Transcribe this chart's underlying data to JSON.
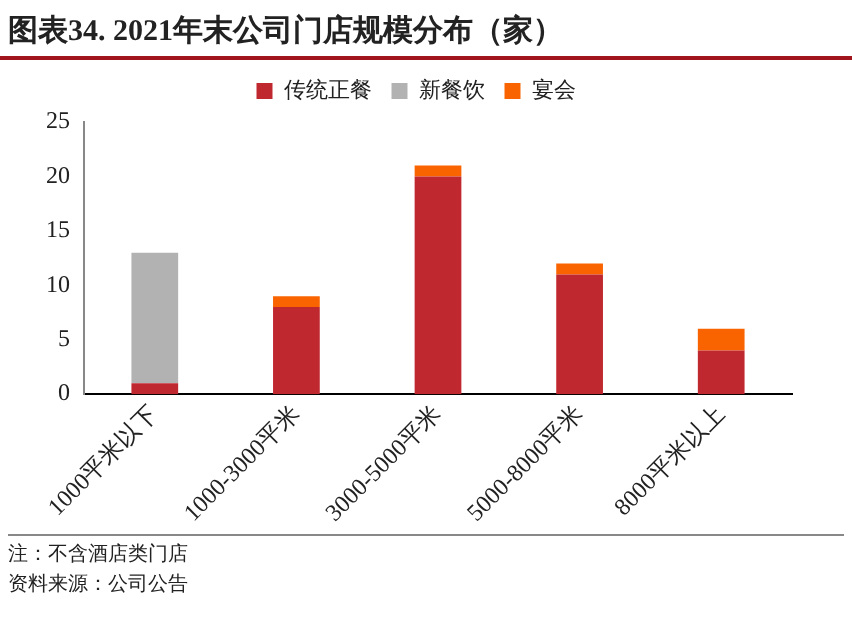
{
  "chart_data": {
    "type": "bar",
    "title": "图表34. 2021年末公司门店规模分布（家）",
    "categories": [
      "1000平米以下",
      "1000-3000平米",
      "3000-5000平米",
      "5000-8000平米",
      "8000平米以上"
    ],
    "series": [
      {
        "name": "传统正餐",
        "color": "#c0282f",
        "values": [
          1,
          8,
          20,
          11,
          4
        ]
      },
      {
        "name": "新餐饮",
        "color": "#b2b2b2",
        "values": [
          12,
          0,
          0,
          0,
          0
        ]
      },
      {
        "name": "宴会",
        "color": "#f96401",
        "values": [
          0,
          1,
          1,
          1,
          2
        ]
      }
    ],
    "stacked": true,
    "ylim": [
      0,
      25
    ],
    "yticks": [
      0,
      5,
      10,
      15,
      20,
      25
    ],
    "grid": false,
    "legend": "top",
    "annotations": [
      "注：不含酒店类门店",
      "资料来源：公司公告"
    ]
  }
}
